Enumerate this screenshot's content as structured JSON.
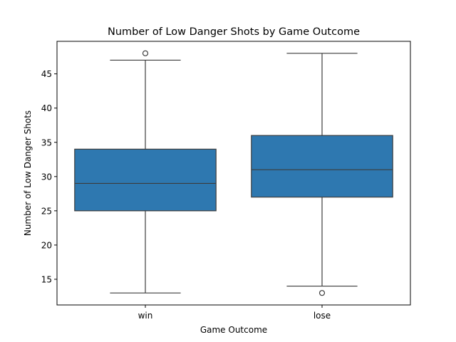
{
  "chart_data": {
    "type": "box",
    "title": "Number of Low Danger Shots by Game Outcome",
    "xlabel": "Game Outcome",
    "ylabel": "Number of Low Danger Shots",
    "ylim": [
      11.25,
      49.75
    ],
    "yticks": [
      15,
      20,
      25,
      30,
      35,
      40,
      45
    ],
    "categories": [
      "win",
      "lose"
    ],
    "boxes": [
      {
        "category": "win",
        "whisker_low": 13,
        "q1": 25,
        "median": 29,
        "q3": 34,
        "whisker_high": 47,
        "outliers": [
          48
        ]
      },
      {
        "category": "lose",
        "whisker_low": 14,
        "q1": 27,
        "median": 31,
        "q3": 36,
        "whisker_high": 48,
        "outliers": [
          13
        ]
      }
    ],
    "box_color": "#2e78b0",
    "line_color": "#3c3c3c",
    "grid": false
  }
}
